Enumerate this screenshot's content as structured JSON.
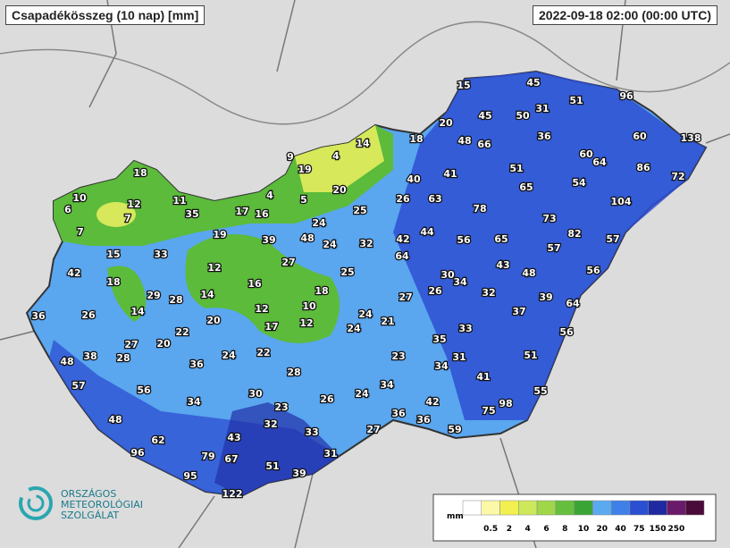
{
  "title": "Csapadékösszeg (10 nap) [mm]",
  "timestamp": "2022-09-18 02:00 (00:00 UTC)",
  "logo": {
    "line1": "ORSZÁGOS",
    "line2": "METEOROLÓGIAI",
    "line3": "SZOLGÁLAT"
  },
  "legend": {
    "unit": "mm",
    "labels": [
      0.5,
      2,
      4,
      6,
      8,
      10,
      20,
      40,
      75,
      150,
      250
    ],
    "colors": [
      "#ffffff",
      "#fbf8a8",
      "#f2f050",
      "#cde85a",
      "#9fd64a",
      "#66bf3c",
      "#3aa535",
      "#5aaaf0",
      "#3f80e8",
      "#2a4fd0",
      "#1f2aa0",
      "#6a1a6a",
      "#4a0a3a"
    ]
  },
  "stations": {
    "values": [
      15,
      45,
      96,
      51,
      31,
      50,
      45,
      20,
      138,
      60,
      36,
      48,
      66,
      18,
      14,
      60,
      64,
      86,
      72,
      51,
      41,
      40,
      54,
      65,
      9,
      4,
      19,
      18,
      20,
      4,
      5,
      11,
      10,
      12,
      6,
      35,
      17,
      16,
      26,
      63,
      104,
      78,
      25,
      73,
      7,
      24,
      7,
      19,
      39,
      48,
      24,
      32,
      42,
      44,
      56,
      65,
      82,
      57,
      57,
      15,
      33,
      64,
      27,
      43,
      48,
      56,
      12,
      25,
      30,
      34,
      42,
      18,
      16,
      18,
      26,
      32,
      39,
      29,
      28,
      14,
      27,
      64,
      10,
      12,
      14,
      37,
      36,
      26,
      20,
      24,
      21,
      17,
      12,
      24,
      22,
      33,
      56,
      35,
      27,
      20,
      38,
      28,
      24,
      22,
      23,
      31,
      51,
      48,
      36,
      34,
      28,
      41,
      57,
      56,
      34,
      55,
      30,
      24,
      26,
      34,
      23,
      42,
      98,
      75,
      36,
      48,
      36,
      32,
      27,
      59,
      33,
      43,
      62,
      96,
      31,
      79,
      67,
      51,
      39,
      95,
      122
    ]
  }
}
